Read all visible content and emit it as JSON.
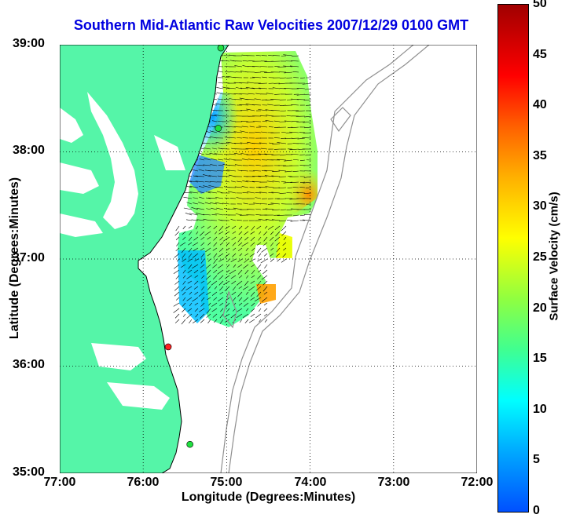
{
  "title": "Southern Mid-Atlantic Raw Velocities 2007/12/29 0100 GMT",
  "x_axis": {
    "label": "Longitude (Degrees:Minutes)",
    "ticks": [
      "77:00",
      "76:00",
      "75:00",
      "74:00",
      "73:00",
      "72:00"
    ]
  },
  "y_axis": {
    "label": "Latitude (Degrees:Minutes)",
    "ticks": [
      "39:00",
      "38:00",
      "37:00",
      "36:00",
      "35:00"
    ]
  },
  "colorbar": {
    "label": "Surface Velocity (cm/s)",
    "ticks": [
      "50",
      "45",
      "40",
      "35",
      "30",
      "25",
      "20",
      "15",
      "10",
      "5",
      "0"
    ],
    "min": 0,
    "max": 50
  },
  "map": {
    "lon_range": [
      -77,
      -72
    ],
    "lat_range": [
      35,
      39
    ],
    "land_color": "#55f5a8",
    "grid": "dotted",
    "stations": [
      {
        "lon": -75.07,
        "lat": 38.97,
        "status": "green"
      },
      {
        "lon": -75.1,
        "lat": 38.22,
        "status": "green"
      },
      {
        "lon": -75.7,
        "lat": 36.18,
        "status": "red"
      },
      {
        "lon": -75.44,
        "lat": 35.27,
        "status": "green"
      }
    ]
  }
}
